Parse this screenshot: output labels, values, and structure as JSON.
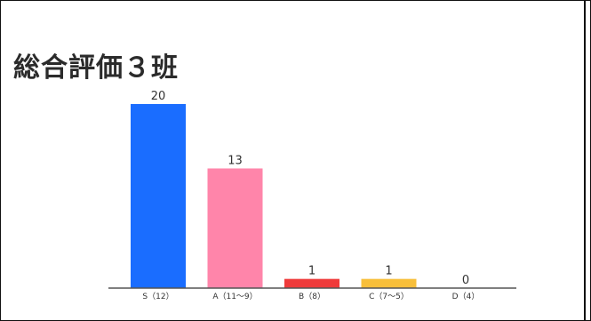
{
  "page": {
    "title": "総合評価３班"
  },
  "chart_data": {
    "type": "bar",
    "categories": [
      "S（12）",
      "A（11〜9）",
      "B（8）",
      "C（7〜5）",
      "D（4）"
    ],
    "values": [
      20,
      13,
      1,
      1,
      0
    ],
    "colors": [
      "#1a6dff",
      "#ff85aa",
      "#ef3b3b",
      "#f8bf3a",
      "#9aa0a6"
    ],
    "title": "総合評価３班",
    "xlabel": "",
    "ylabel": "",
    "ylim": [
      0,
      20
    ],
    "grid": false,
    "legend": "none",
    "data_labels": true
  }
}
